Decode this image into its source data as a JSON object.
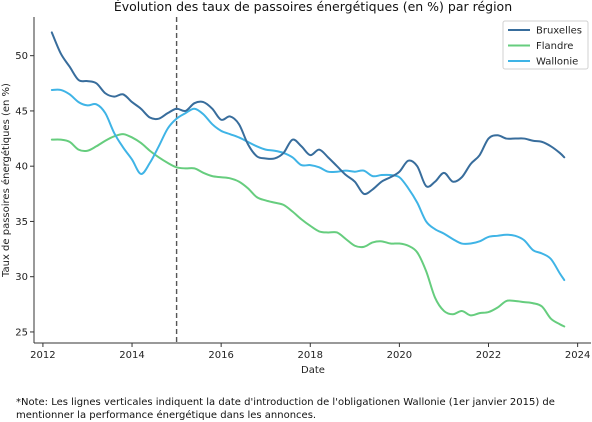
{
  "chart_data": {
    "type": "line",
    "title": "Évolution des taux de passoires énergétiques (en %) par région",
    "xlabel": "Date",
    "ylabel": "Taux de passoires énergétiques (en %)",
    "xlim": [
      2011.8,
      2024.3
    ],
    "ylim": [
      24.0,
      53.5
    ],
    "xticks": [
      2012,
      2014,
      2016,
      2018,
      2020,
      2022,
      2024
    ],
    "yticks": [
      25,
      30,
      35,
      40,
      45,
      50
    ],
    "grid": false,
    "legend_position": "top-right",
    "vline": {
      "x": 2015.0,
      "style": "dashed",
      "color": "#555555"
    },
    "series": [
      {
        "name": "Bruxelles",
        "color": "#386d9c",
        "points": [
          [
            2012.2,
            52.1
          ],
          [
            2012.4,
            50.2
          ],
          [
            2012.6,
            49.0
          ],
          [
            2012.8,
            47.8
          ],
          [
            2013.0,
            47.7
          ],
          [
            2013.2,
            47.5
          ],
          [
            2013.4,
            46.6
          ],
          [
            2013.6,
            46.3
          ],
          [
            2013.8,
            46.5
          ],
          [
            2014.0,
            45.8
          ],
          [
            2014.2,
            45.2
          ],
          [
            2014.4,
            44.4
          ],
          [
            2014.6,
            44.3
          ],
          [
            2014.8,
            44.8
          ],
          [
            2015.0,
            45.2
          ],
          [
            2015.2,
            45.0
          ],
          [
            2015.4,
            45.7
          ],
          [
            2015.6,
            45.8
          ],
          [
            2015.8,
            45.2
          ],
          [
            2016.0,
            44.2
          ],
          [
            2016.2,
            44.5
          ],
          [
            2016.4,
            43.8
          ],
          [
            2016.6,
            42.0
          ],
          [
            2016.8,
            40.9
          ],
          [
            2017.0,
            40.7
          ],
          [
            2017.2,
            40.7
          ],
          [
            2017.4,
            41.2
          ],
          [
            2017.6,
            42.4
          ],
          [
            2017.8,
            41.8
          ],
          [
            2018.0,
            41.0
          ],
          [
            2018.2,
            41.5
          ],
          [
            2018.4,
            40.8
          ],
          [
            2018.6,
            40.0
          ],
          [
            2018.8,
            39.2
          ],
          [
            2019.0,
            38.6
          ],
          [
            2019.2,
            37.5
          ],
          [
            2019.4,
            37.9
          ],
          [
            2019.6,
            38.6
          ],
          [
            2019.8,
            39.0
          ],
          [
            2020.0,
            39.5
          ],
          [
            2020.2,
            40.5
          ],
          [
            2020.4,
            40.0
          ],
          [
            2020.6,
            38.2
          ],
          [
            2020.8,
            38.6
          ],
          [
            2021.0,
            39.4
          ],
          [
            2021.2,
            38.6
          ],
          [
            2021.4,
            39.0
          ],
          [
            2021.6,
            40.2
          ],
          [
            2021.8,
            41.0
          ],
          [
            2022.0,
            42.5
          ],
          [
            2022.2,
            42.8
          ],
          [
            2022.4,
            42.5
          ],
          [
            2022.6,
            42.5
          ],
          [
            2022.8,
            42.5
          ],
          [
            2023.0,
            42.3
          ],
          [
            2023.2,
            42.2
          ],
          [
            2023.4,
            41.8
          ],
          [
            2023.6,
            41.2
          ],
          [
            2023.7,
            40.8
          ]
        ]
      },
      {
        "name": "Flandre",
        "color": "#66cd7e",
        "points": [
          [
            2012.2,
            42.4
          ],
          [
            2012.4,
            42.4
          ],
          [
            2012.6,
            42.2
          ],
          [
            2012.8,
            41.5
          ],
          [
            2013.0,
            41.4
          ],
          [
            2013.2,
            41.8
          ],
          [
            2013.4,
            42.3
          ],
          [
            2013.6,
            42.7
          ],
          [
            2013.8,
            42.9
          ],
          [
            2014.0,
            42.6
          ],
          [
            2014.2,
            42.1
          ],
          [
            2014.4,
            41.4
          ],
          [
            2014.6,
            40.8
          ],
          [
            2014.8,
            40.3
          ],
          [
            2015.0,
            39.9
          ],
          [
            2015.2,
            39.8
          ],
          [
            2015.4,
            39.8
          ],
          [
            2015.6,
            39.4
          ],
          [
            2015.8,
            39.1
          ],
          [
            2016.0,
            39.0
          ],
          [
            2016.2,
            38.9
          ],
          [
            2016.4,
            38.6
          ],
          [
            2016.6,
            38.0
          ],
          [
            2016.8,
            37.2
          ],
          [
            2017.0,
            36.9
          ],
          [
            2017.2,
            36.7
          ],
          [
            2017.4,
            36.5
          ],
          [
            2017.6,
            35.9
          ],
          [
            2017.8,
            35.2
          ],
          [
            2018.0,
            34.6
          ],
          [
            2018.2,
            34.1
          ],
          [
            2018.4,
            34.0
          ],
          [
            2018.6,
            34.0
          ],
          [
            2018.8,
            33.4
          ],
          [
            2019.0,
            32.8
          ],
          [
            2019.2,
            32.7
          ],
          [
            2019.4,
            33.1
          ],
          [
            2019.6,
            33.2
          ],
          [
            2019.8,
            33.0
          ],
          [
            2020.0,
            33.0
          ],
          [
            2020.2,
            32.8
          ],
          [
            2020.4,
            32.2
          ],
          [
            2020.6,
            30.5
          ],
          [
            2020.8,
            28.1
          ],
          [
            2021.0,
            26.9
          ],
          [
            2021.2,
            26.6
          ],
          [
            2021.4,
            26.9
          ],
          [
            2021.6,
            26.5
          ],
          [
            2021.8,
            26.7
          ],
          [
            2022.0,
            26.8
          ],
          [
            2022.2,
            27.2
          ],
          [
            2022.4,
            27.8
          ],
          [
            2022.6,
            27.8
          ],
          [
            2022.8,
            27.7
          ],
          [
            2023.0,
            27.6
          ],
          [
            2023.2,
            27.3
          ],
          [
            2023.4,
            26.2
          ],
          [
            2023.6,
            25.7
          ],
          [
            2023.7,
            25.5
          ]
        ]
      },
      {
        "name": "Wallonie",
        "color": "#3fb4e6",
        "points": [
          [
            2012.2,
            46.9
          ],
          [
            2012.4,
            46.9
          ],
          [
            2012.6,
            46.5
          ],
          [
            2012.8,
            45.8
          ],
          [
            2013.0,
            45.5
          ],
          [
            2013.2,
            45.6
          ],
          [
            2013.4,
            44.8
          ],
          [
            2013.6,
            43.0
          ],
          [
            2013.8,
            41.7
          ],
          [
            2014.0,
            40.6
          ],
          [
            2014.2,
            39.3
          ],
          [
            2014.4,
            40.3
          ],
          [
            2014.6,
            41.8
          ],
          [
            2014.8,
            43.4
          ],
          [
            2015.0,
            44.3
          ],
          [
            2015.2,
            44.8
          ],
          [
            2015.4,
            45.2
          ],
          [
            2015.6,
            44.7
          ],
          [
            2015.8,
            43.8
          ],
          [
            2016.0,
            43.2
          ],
          [
            2016.2,
            42.9
          ],
          [
            2016.4,
            42.6
          ],
          [
            2016.6,
            42.2
          ],
          [
            2016.8,
            41.8
          ],
          [
            2017.0,
            41.5
          ],
          [
            2017.2,
            41.4
          ],
          [
            2017.4,
            41.2
          ],
          [
            2017.6,
            40.8
          ],
          [
            2017.8,
            40.1
          ],
          [
            2018.0,
            40.1
          ],
          [
            2018.2,
            39.9
          ],
          [
            2018.4,
            39.5
          ],
          [
            2018.6,
            39.5
          ],
          [
            2018.8,
            39.6
          ],
          [
            2019.0,
            39.5
          ],
          [
            2019.2,
            39.6
          ],
          [
            2019.4,
            39.1
          ],
          [
            2019.6,
            39.2
          ],
          [
            2019.8,
            39.2
          ],
          [
            2020.0,
            39.0
          ],
          [
            2020.2,
            38.0
          ],
          [
            2020.4,
            36.7
          ],
          [
            2020.6,
            35.0
          ],
          [
            2020.8,
            34.3
          ],
          [
            2021.0,
            33.9
          ],
          [
            2021.2,
            33.4
          ],
          [
            2021.4,
            33.0
          ],
          [
            2021.6,
            33.0
          ],
          [
            2021.8,
            33.2
          ],
          [
            2022.0,
            33.6
          ],
          [
            2022.2,
            33.7
          ],
          [
            2022.4,
            33.8
          ],
          [
            2022.6,
            33.7
          ],
          [
            2022.8,
            33.3
          ],
          [
            2023.0,
            32.4
          ],
          [
            2023.2,
            32.1
          ],
          [
            2023.4,
            31.6
          ],
          [
            2023.6,
            30.3
          ],
          [
            2023.7,
            29.7
          ]
        ]
      }
    ]
  },
  "note": "*Note: Les lignes verticales indiquent la date d'introduction de l'obligationen Wallonie (1er janvier 2015) de mentionner la performance énergétique dans les annonces."
}
